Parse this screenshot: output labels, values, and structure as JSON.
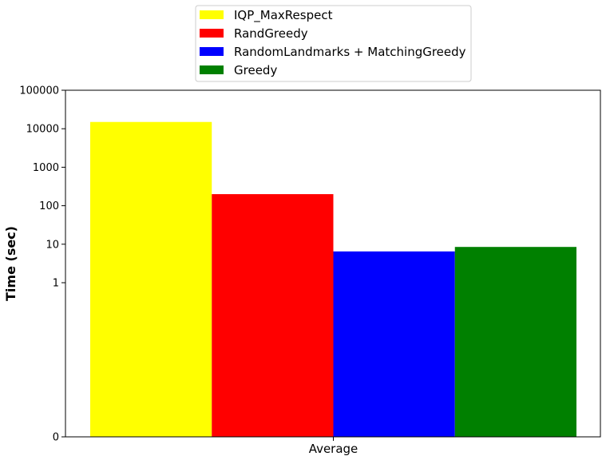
{
  "chart_data": {
    "type": "bar",
    "title": "",
    "xlabel": "",
    "ylabel": "Time (sec)",
    "categories": [
      "Average"
    ],
    "yscale": "symlog",
    "ylim": [
      0,
      100000
    ],
    "yticks": [
      0,
      1,
      10,
      100,
      1000,
      10000,
      100000
    ],
    "ytick_labels": [
      "0",
      "1",
      "10",
      "100",
      "1000",
      "10000",
      "100000"
    ],
    "grid": false,
    "legend_position": "top-center, outside plot",
    "series": [
      {
        "name": "IQP_MaxRespect",
        "color": "#ffff00",
        "values": [
          15000
        ]
      },
      {
        "name": "RandGreedy",
        "color": "#ff0000",
        "values": [
          200
        ]
      },
      {
        "name": "RandomLandmarks + MatchingGreedy",
        "color": "#0000ff",
        "values": [
          6.5
        ]
      },
      {
        "name": "Greedy",
        "color": "#008000",
        "values": [
          8.5
        ]
      }
    ]
  }
}
